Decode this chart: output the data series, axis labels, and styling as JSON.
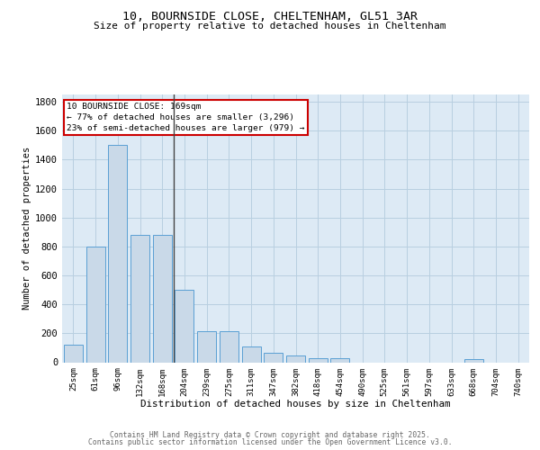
{
  "title1": "10, BOURNSIDE CLOSE, CHELTENHAM, GL51 3AR",
  "title2": "Size of property relative to detached houses in Cheltenham",
  "xlabel": "Distribution of detached houses by size in Cheltenham",
  "ylabel": "Number of detached properties",
  "categories": [
    "25sqm",
    "61sqm",
    "96sqm",
    "132sqm",
    "168sqm",
    "204sqm",
    "239sqm",
    "275sqm",
    "311sqm",
    "347sqm",
    "382sqm",
    "418sqm",
    "454sqm",
    "490sqm",
    "525sqm",
    "561sqm",
    "597sqm",
    "633sqm",
    "668sqm",
    "704sqm",
    "740sqm"
  ],
  "values": [
    120,
    800,
    1500,
    880,
    880,
    500,
    215,
    215,
    110,
    65,
    45,
    30,
    25,
    0,
    0,
    0,
    0,
    0,
    20,
    0,
    0
  ],
  "bar_color": "#c9d9e8",
  "bar_edge_color": "#5a9fd4",
  "annotation_title": "10 BOURNSIDE CLOSE: 169sqm",
  "annotation_line1": "← 77% of detached houses are smaller (3,296)",
  "annotation_line2": "23% of semi-detached houses are larger (979) →",
  "annotation_box_facecolor": "#ffffff",
  "annotation_box_edgecolor": "#cc0000",
  "footer1": "Contains HM Land Registry data © Crown copyright and database right 2025.",
  "footer2": "Contains public sector information licensed under the Open Government Licence v3.0.",
  "plot_bg_color": "#ddeaf5",
  "ylim": [
    0,
    1850
  ],
  "yticks": [
    0,
    200,
    400,
    600,
    800,
    1000,
    1200,
    1400,
    1600,
    1800
  ],
  "vline_pos": 4.5
}
